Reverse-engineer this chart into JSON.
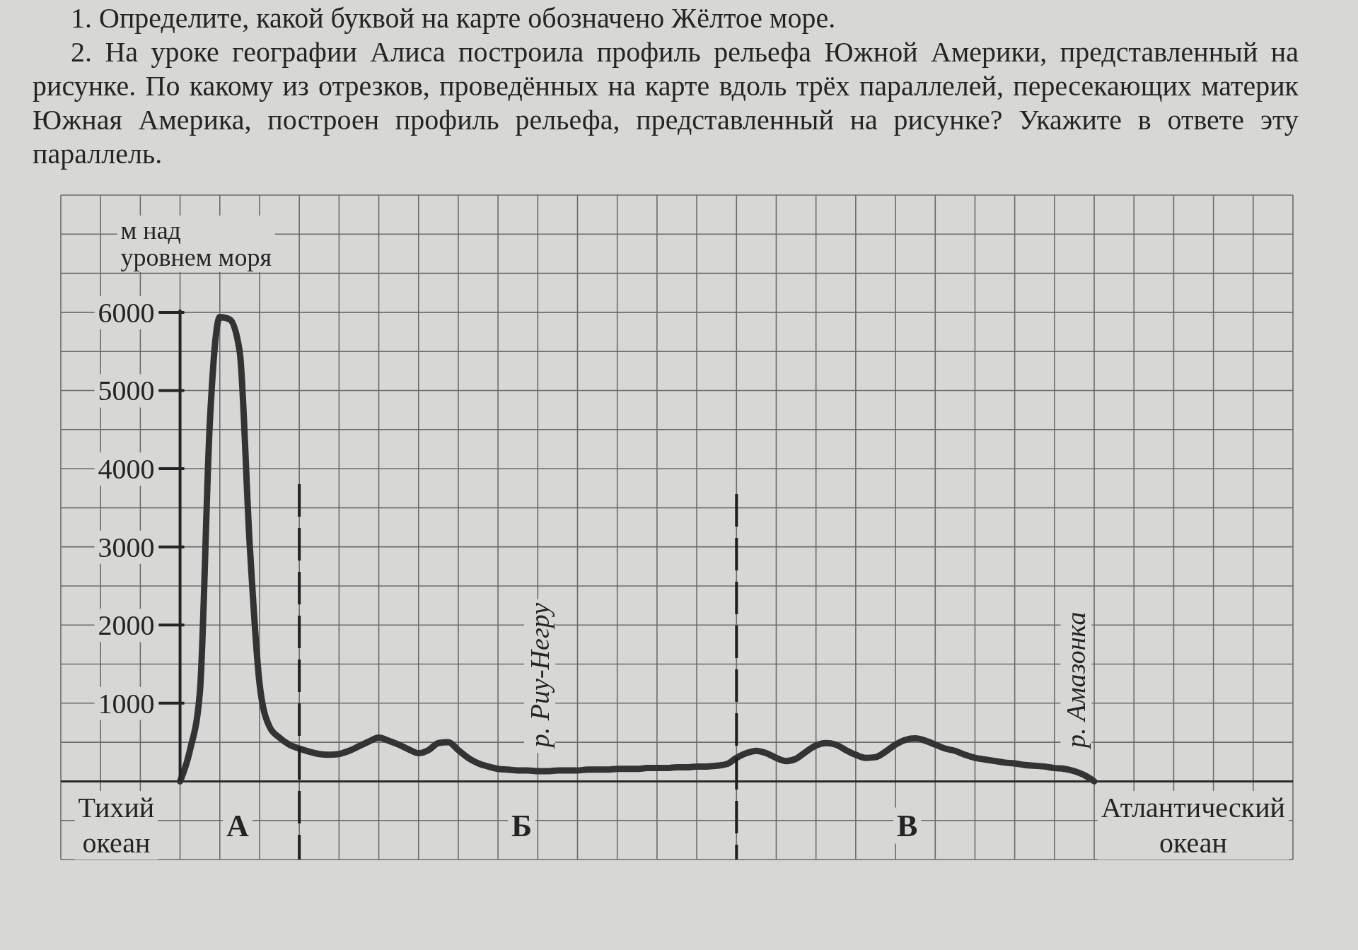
{
  "chart_data": {
    "type": "line",
    "title": "2. На уроке географии Алиса построила профиль рельефа Южной Америки, представленный на рисунке. По какому из отрезков, проведённых на карте вдоль трёх параллелей, пересекающих материк Южная Америка, построен профиль рельефа, представленный на рисунке? Укажите в ответе эту параллель.",
    "ylabel": "м над уровнем моря",
    "annotations": [
      "1. Определите, какой буквой на карте обозначено Жёлтое море.",
      "А",
      "Б",
      "В",
      "Тихий океан",
      "Атлантический океан",
      "р. Риу-Негру",
      "р. Амазонка"
    ],
    "categories": [
      null,
      null,
      null,
      null,
      null,
      null,
      null,
      null,
      null,
      null,
      null,
      null,
      null,
      null,
      null,
      null,
      null,
      null,
      null,
      null,
      null,
      null,
      null,
      null,
      null,
      null,
      null,
      null,
      null,
      null,
      null,
      null,
      null,
      null,
      null,
      null,
      null,
      null,
      null,
      null,
      null,
      null,
      null,
      null,
      null,
      null,
      null,
      null,
      null,
      null,
      null,
      null,
      null,
      null,
      null,
      null,
      null,
      null,
      null,
      null,
      null,
      null,
      null,
      null,
      null,
      null,
      null,
      null,
      null,
      null,
      null,
      null,
      null,
      null,
      null,
      null,
      null,
      null,
      null,
      null,
      null,
      null,
      null,
      null,
      null,
      null,
      null,
      null,
      null,
      null,
      null,
      null,
      null,
      null,
      null,
      null,
      null,
      null,
      null,
      null,
      null,
      null,
      null,
      null,
      null,
      null,
      null,
      null,
      null,
      null,
      null,
      null,
      null,
      null,
      null,
      null,
      null,
      null,
      null,
      null,
      null,
      null,
      null,
      null,
      null
    ],
    "series": [
      {
        "color": "#333333",
        "values": [
          null,
          null,
          null,
          null,
          null,
          null,
          null,
          null,
          null,
          null,
          null,
          null,
          0,
          400,
          1150,
          4600,
          5940,
          5910,
          5500,
          3050,
          1250,
          700,
          560,
          470,
          420,
          380,
          350,
          340,
          350,
          390,
          450,
          510,
          560,
          520,
          470,
          410,
          360,
          400,
          490,
          500,
          400,
          300,
          230,
          190,
          160,
          150,
          140,
          140,
          130,
          130,
          140,
          140,
          140,
          150,
          150,
          150,
          160,
          160,
          160,
          170,
          170,
          170,
          180,
          180,
          190,
          190,
          200,
          220,
          300,
          360,
          390,
          360,
          300,
          260,
          290,
          380,
          460,
          490,
          470,
          400,
          340,
          300,
          310,
          380,
          470,
          530,
          550,
          520,
          470,
          420,
          390,
          340,
          300,
          280,
          260,
          240,
          230,
          210,
          200,
          190,
          170,
          160,
          130,
          80,
          0,
          null,
          null,
          null,
          null,
          null,
          null,
          null,
          null,
          null,
          null,
          null,
          null,
          null,
          null,
          null,
          null,
          null,
          null,
          null,
          null
        ]
      }
    ],
    "ylim": [
      -1000,
      7500
    ],
    "yticks": [
      {
        "value": -1000,
        "label": null
      },
      {
        "value": -500,
        "label": null
      },
      {
        "value": 0,
        "label": null
      },
      {
        "value": 500,
        "label": null
      },
      1000,
      {
        "value": 1500,
        "label": null
      },
      2000,
      {
        "value": 2500,
        "label": null
      },
      3000,
      {
        "value": 3500,
        "label": null
      },
      4000,
      {
        "value": 4500,
        "label": null
      },
      5000,
      {
        "value": 5500,
        "label": null
      },
      6000,
      {
        "value": 6500,
        "label": null
      },
      {
        "value": 7000,
        "label": null
      },
      {
        "value": 7500,
        "label": null
      }
    ],
    "ref_lines": [
      {
        "axis": "y",
        "value": 0,
        "color": "#2a2a2a"
      }
    ],
    "grid": true,
    "tick_labels": "y",
    "marker": "none"
  }
}
